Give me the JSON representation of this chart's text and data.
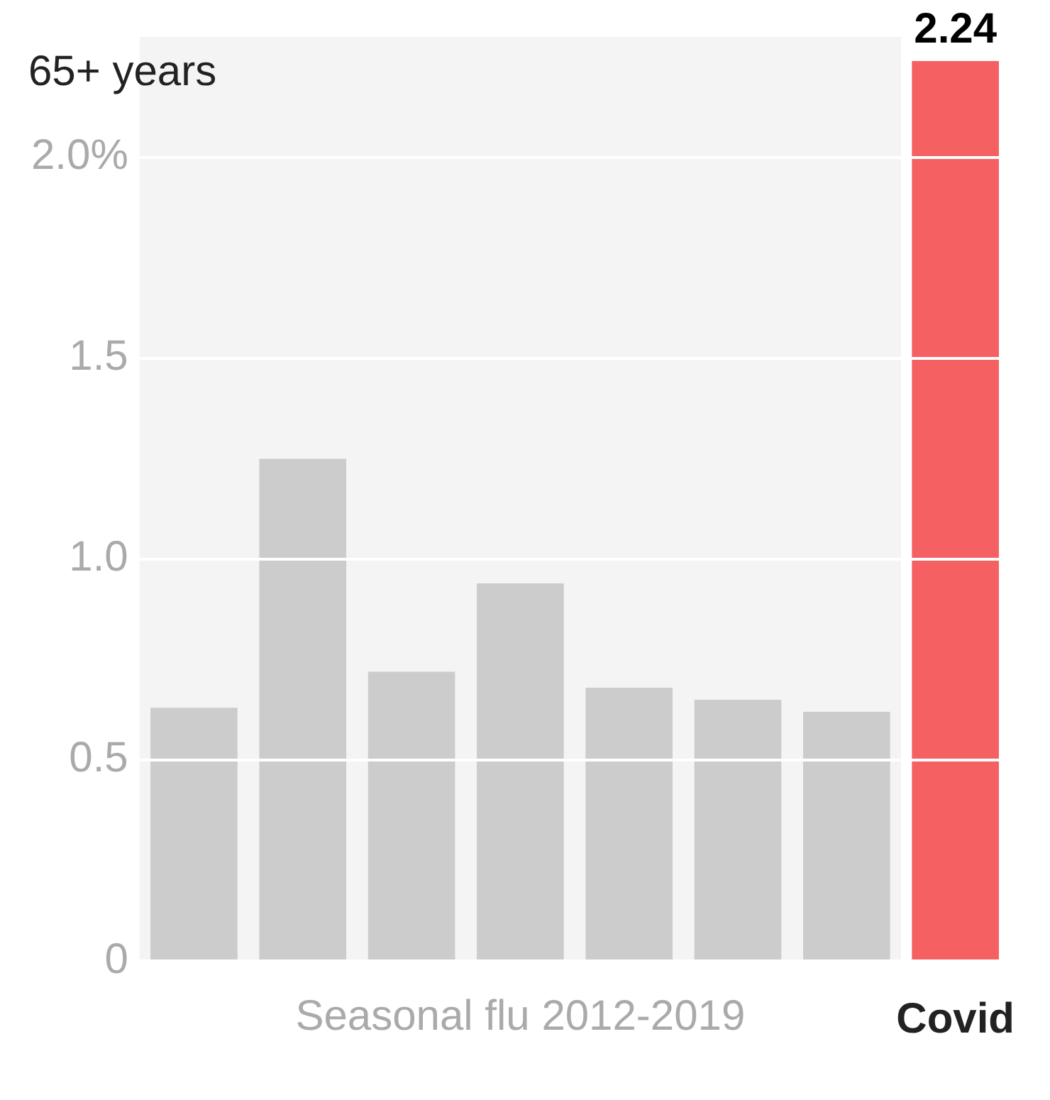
{
  "chart_data": {
    "type": "bar",
    "title": "65+ years",
    "categories": [
      null,
      null,
      null,
      null,
      null,
      null,
      null,
      "Covid"
    ],
    "values": [
      0.63,
      1.25,
      0.72,
      0.94,
      0.68,
      0.65,
      0.62,
      2.24
    ],
    "colors": [
      "#cccccc",
      "#cccccc",
      "#cccccc",
      "#cccccc",
      "#cccccc",
      "#cccccc",
      "#cccccc",
      "#f56163"
    ],
    "value_labels": [
      null,
      null,
      null,
      null,
      null,
      null,
      null,
      "2.24"
    ],
    "ylim": [
      0,
      2.3
    ],
    "yticks": [
      0,
      {
        "value": 0.5,
        "label": "0.5"
      },
      {
        "value": 1,
        "label": "1.0"
      },
      1.5,
      {
        "value": 2,
        "label": "2.0%"
      }
    ],
    "grid": "y",
    "annotations": [
      "Seasonal flu 2012-2019"
    ]
  }
}
